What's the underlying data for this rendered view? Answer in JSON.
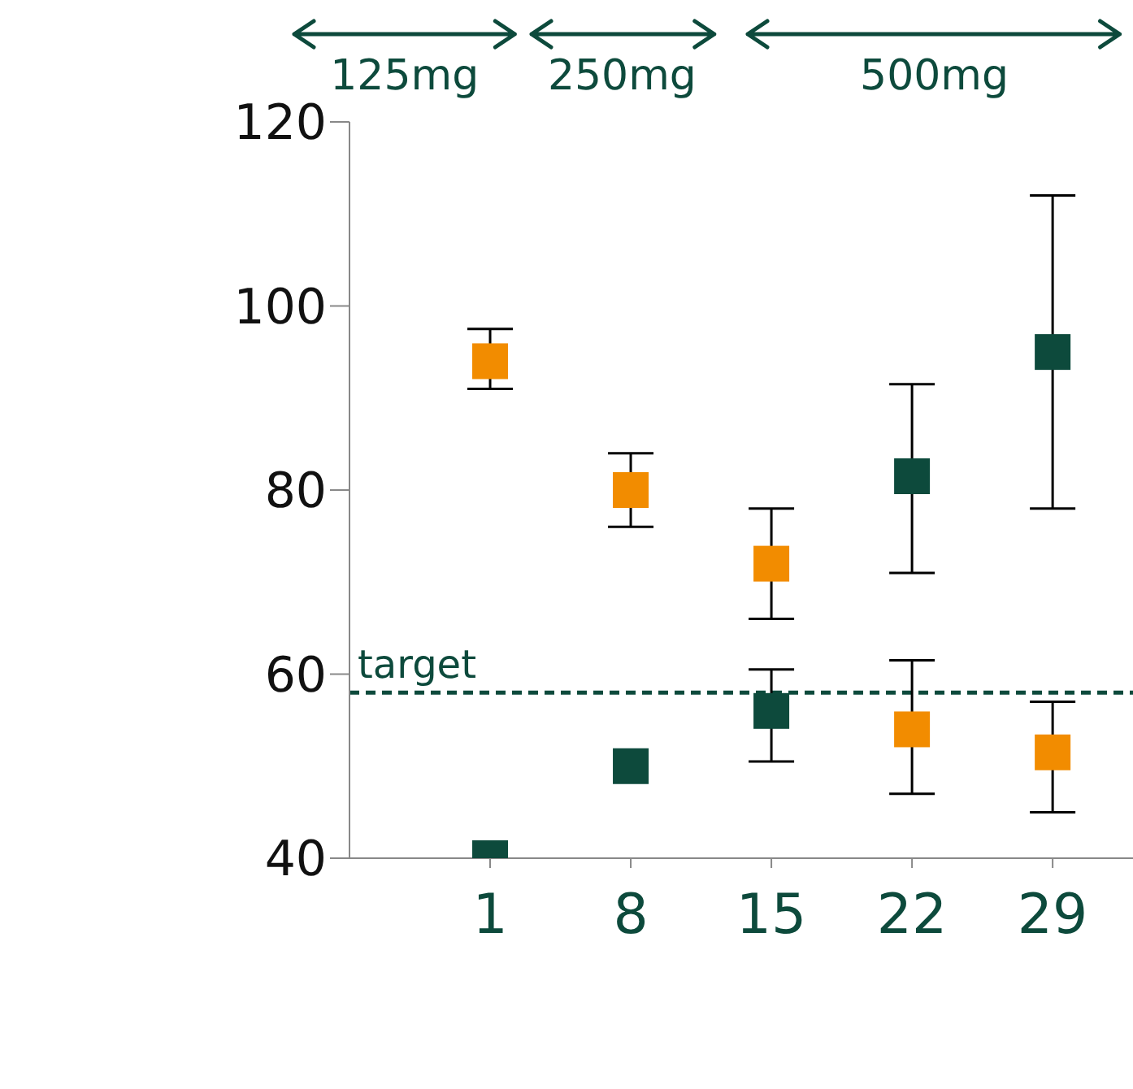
{
  "chart_data": {
    "type": "scatter",
    "x": [
      1,
      8,
      15,
      22,
      29
    ],
    "xlim": [
      -6,
      33
    ],
    "xticks": [
      1,
      8,
      15,
      22,
      29
    ],
    "ylim": [
      40,
      120
    ],
    "yticks": [
      40,
      60,
      80,
      100,
      120
    ],
    "marker": "square",
    "series": [
      {
        "color": "#f28c00",
        "values": [
          94,
          80,
          72,
          54,
          51.5
        ],
        "errors": [
          [
            91,
            97.5
          ],
          [
            76,
            84
          ],
          [
            66,
            78
          ],
          [
            47,
            61.5
          ],
          [
            45,
            57
          ]
        ]
      },
      {
        "color": "#0d4a3c",
        "values": [
          40,
          50,
          56,
          81.5,
          95
        ],
        "errors": [
          null,
          null,
          [
            50.5,
            60.5
          ],
          [
            71,
            91.5
          ],
          [
            78,
            112
          ]
        ]
      }
    ],
    "ref_lines": [
      {
        "axis": "y",
        "value": 58,
        "label": "target",
        "color": "#0d4a3c",
        "line_style": "dashed"
      }
    ],
    "annotations": [
      "125mg",
      "250mg",
      "500mg"
    ]
  }
}
